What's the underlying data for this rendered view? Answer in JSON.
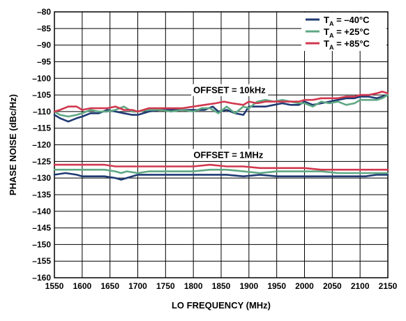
{
  "chart_data": {
    "type": "line",
    "title": "",
    "xlabel": "LO FREQUENCY (MHz)",
    "ylabel": "PHASE NOISE (dBc/Hz)",
    "xlim": [
      1550,
      2150
    ],
    "ylim": [
      -160,
      -80
    ],
    "x_ticks": [
      1550,
      1600,
      1650,
      1700,
      1750,
      1800,
      1850,
      1900,
      1950,
      2000,
      2050,
      2100,
      2150
    ],
    "y_ticks": [
      -80,
      -85,
      -90,
      -95,
      -100,
      -105,
      -110,
      -115,
      -120,
      -125,
      -130,
      -135,
      -140,
      -145,
      -150,
      -155,
      -160
    ],
    "grid": true,
    "legend_position": "top-right",
    "legend": [
      {
        "prefix": "T",
        "sub": "A",
        "suffix": " = –40°C",
        "color": "#1f3a73"
      },
      {
        "prefix": "T",
        "sub": "A",
        "suffix": " = +25°C",
        "color": "#5fa883"
      },
      {
        "prefix": "T",
        "sub": "A",
        "suffix": " = +85°C",
        "color": "#d1384f"
      }
    ],
    "annotations": [
      {
        "text": "OFFSET = 10kHz",
        "x": 1865,
        "y": -104.5
      },
      {
        "text": "OFFSET = 1MHz",
        "x": 1863,
        "y": -124
      }
    ],
    "series": [
      {
        "group": "10kHz",
        "legend_index": 0,
        "color": "#1f3a73",
        "x": [
          1550,
          1560,
          1575,
          1590,
          1600,
          1615,
          1630,
          1645,
          1660,
          1675,
          1690,
          1700,
          1720,
          1740,
          1760,
          1780,
          1800,
          1820,
          1835,
          1845,
          1860,
          1875,
          1890,
          1900,
          1915,
          1930,
          1945,
          1960,
          1975,
          1990,
          2000,
          2015,
          2030,
          2045,
          2060,
          2075,
          2090,
          2100,
          2115,
          2130,
          2140,
          2150
        ],
        "values": [
          -111,
          -112,
          -113,
          -112,
          -111.5,
          -110.5,
          -110.5,
          -109.5,
          -110,
          -110.5,
          -111,
          -111,
          -110,
          -109.5,
          -109.5,
          -109.5,
          -109.5,
          -109.5,
          -108.5,
          -110,
          -109.5,
          -110.5,
          -111,
          -108.5,
          -108.5,
          -108.5,
          -108,
          -107.5,
          -108,
          -108,
          -107,
          -108,
          -107.5,
          -107,
          -106.5,
          -106,
          -106,
          -105.5,
          -105.5,
          -106,
          -105.5,
          -105
        ]
      },
      {
        "group": "10kHz",
        "legend_index": 1,
        "color": "#5fa883",
        "x": [
          1550,
          1560,
          1575,
          1590,
          1600,
          1615,
          1630,
          1645,
          1660,
          1675,
          1690,
          1700,
          1720,
          1740,
          1760,
          1780,
          1800,
          1815,
          1830,
          1845,
          1860,
          1875,
          1890,
          1900,
          1915,
          1930,
          1945,
          1960,
          1975,
          1990,
          2000,
          2015,
          2030,
          2045,
          2060,
          2075,
          2090,
          2100,
          2115,
          2130,
          2140,
          2150
        ],
        "values": [
          -110,
          -111,
          -111.5,
          -111,
          -110.5,
          -109.5,
          -110,
          -110,
          -109.5,
          -108.5,
          -110,
          -110,
          -109.5,
          -109.5,
          -110,
          -109.5,
          -110,
          -109,
          -109,
          -110.5,
          -108.5,
          -110.5,
          -108.5,
          -109,
          -107,
          -106.5,
          -107,
          -106.5,
          -107,
          -107.5,
          -107.5,
          -108.5,
          -107,
          -107.5,
          -107,
          -108,
          -107.5,
          -106.5,
          -106.5,
          -106.5,
          -106,
          -105
        ]
      },
      {
        "group": "10kHz",
        "legend_index": 2,
        "color": "#d1384f",
        "x": [
          1550,
          1560,
          1575,
          1590,
          1600,
          1615,
          1630,
          1645,
          1660,
          1675,
          1690,
          1700,
          1720,
          1740,
          1760,
          1780,
          1800,
          1820,
          1840,
          1855,
          1870,
          1890,
          1900,
          1915,
          1930,
          1945,
          1960,
          1975,
          1990,
          2000,
          2015,
          2030,
          2045,
          2060,
          2075,
          2090,
          2100,
          2115,
          2130,
          2140,
          2150
        ],
        "values": [
          -110,
          -109.5,
          -108.5,
          -108.5,
          -109.5,
          -109,
          -109,
          -109,
          -108.5,
          -109.5,
          -109.5,
          -110,
          -109,
          -109,
          -109,
          -109,
          -108.5,
          -108,
          -107.5,
          -107,
          -107.5,
          -108,
          -107,
          -107.5,
          -107,
          -107,
          -107,
          -107,
          -107,
          -106.5,
          -106.5,
          -106,
          -106,
          -106,
          -105.5,
          -105.5,
          -105,
          -105,
          -104.5,
          -104,
          -104.5
        ]
      },
      {
        "group": "1MHz",
        "legend_index": 0,
        "color": "#1f3a73",
        "x": [
          1550,
          1570,
          1590,
          1600,
          1620,
          1640,
          1660,
          1670,
          1680,
          1700,
          1720,
          1750,
          1780,
          1800,
          1830,
          1860,
          1890,
          1920,
          1950,
          1980,
          2000,
          2030,
          2060,
          2090,
          2110,
          2130,
          2150
        ],
        "values": [
          -129,
          -128.5,
          -129,
          -129.5,
          -129.5,
          -129.5,
          -130,
          -130.5,
          -130,
          -129,
          -129,
          -129,
          -129,
          -129,
          -129,
          -129,
          -129.5,
          -129,
          -129.5,
          -129.5,
          -129.5,
          -129.5,
          -129.5,
          -129.5,
          -129.5,
          -129,
          -129
        ]
      },
      {
        "group": "1MHz",
        "legend_index": 1,
        "color": "#5fa883",
        "x": [
          1550,
          1570,
          1590,
          1600,
          1620,
          1640,
          1660,
          1670,
          1680,
          1700,
          1720,
          1750,
          1780,
          1800,
          1830,
          1860,
          1890,
          1920,
          1950,
          1980,
          2000,
          2030,
          2060,
          2090,
          2110,
          2130,
          2150
        ],
        "values": [
          -127.5,
          -127.5,
          -127.5,
          -127.5,
          -127.5,
          -127.5,
          -128,
          -128.5,
          -128,
          -128.5,
          -128,
          -128,
          -128,
          -128,
          -127.5,
          -127.5,
          -128,
          -128.5,
          -128,
          -128,
          -128,
          -128,
          -128.5,
          -128.5,
          -128.5,
          -128.5,
          -128.5
        ]
      },
      {
        "group": "1MHz",
        "legend_index": 2,
        "color": "#d1384f",
        "x": [
          1550,
          1570,
          1590,
          1600,
          1620,
          1640,
          1660,
          1670,
          1680,
          1700,
          1720,
          1750,
          1780,
          1800,
          1830,
          1860,
          1890,
          1920,
          1950,
          1980,
          2000,
          2030,
          2060,
          2090,
          2110,
          2130,
          2150
        ],
        "values": [
          -126,
          -126,
          -126,
          -126,
          -126,
          -126,
          -126.5,
          -126.5,
          -126.5,
          -126.5,
          -126.5,
          -126.5,
          -126.5,
          -126.5,
          -126,
          -126.5,
          -126.5,
          -127,
          -127,
          -127,
          -127,
          -127.5,
          -127.5,
          -127.5,
          -127.5,
          -127.5,
          -127.5
        ]
      }
    ]
  }
}
